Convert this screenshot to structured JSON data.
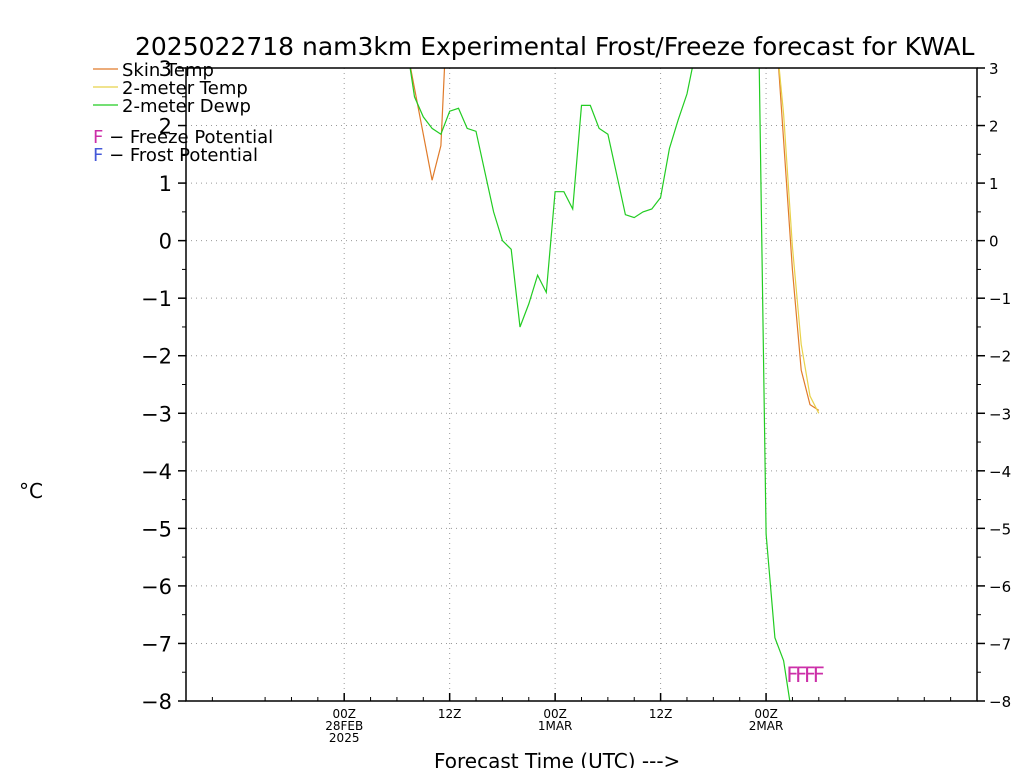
{
  "chart_data": {
    "type": "line",
    "title": "2025022718 nam3km Experimental Frost/Freeze forecast for KWAL",
    "xlabel": "Forecast Time (UTC) --->",
    "ylabel": "°C",
    "xlim": [
      -18,
      72
    ],
    "ylim": [
      -8,
      3
    ],
    "grid": true,
    "legend_placement": "top-left",
    "y_ticks": [
      "−8",
      "−7",
      "−6",
      "−5",
      "−4",
      "−3",
      "−2",
      "−1",
      "0",
      "1",
      "2",
      "3"
    ],
    "x_ticks": [
      {
        "x": 0,
        "lines": [
          "00Z",
          "28FEB",
          "2025"
        ]
      },
      {
        "x": 12,
        "lines": [
          "12Z"
        ]
      },
      {
        "x": 24,
        "lines": [
          "00Z",
          "1MAR"
        ]
      },
      {
        "x": 36,
        "lines": [
          "12Z"
        ]
      },
      {
        "x": 48,
        "lines": [
          "00Z",
          "2MAR"
        ]
      }
    ],
    "series": [
      {
        "name": "Skin Temp",
        "color": "#e07b2a",
        "points": [
          [
            7.3,
            3.2
          ],
          [
            10,
            1.05
          ],
          [
            11,
            1.65
          ],
          [
            11.5,
            3.3
          ],
          [
            49.3,
            3.3
          ],
          [
            51,
            -0.5
          ],
          [
            52,
            -2.25
          ],
          [
            53,
            -2.85
          ],
          [
            54,
            -2.95
          ]
        ]
      },
      {
        "name": "2-meter Temp",
        "color": "#e8d24a",
        "points": [
          [
            49.3,
            3.3
          ],
          [
            50,
            2.2
          ],
          [
            51,
            -0.1
          ],
          [
            52,
            -1.8
          ],
          [
            53,
            -2.7
          ],
          [
            54,
            -3.0
          ]
        ]
      },
      {
        "name": "2-meter Dewp",
        "color": "#22cc22",
        "points": [
          [
            7.3,
            3.2
          ],
          [
            8,
            2.5
          ],
          [
            9,
            2.15
          ],
          [
            10,
            1.95
          ],
          [
            11,
            1.85
          ],
          [
            12,
            2.25
          ],
          [
            13,
            2.3
          ],
          [
            14,
            1.95
          ],
          [
            15,
            1.9
          ],
          [
            16,
            1.2
          ],
          [
            17,
            0.5
          ],
          [
            18,
            0.0
          ],
          [
            19,
            -0.15
          ],
          [
            20,
            -1.5
          ],
          [
            21,
            -1.1
          ],
          [
            22,
            -0.6
          ],
          [
            23,
            -0.9
          ],
          [
            24,
            0.85
          ],
          [
            25,
            0.85
          ],
          [
            26,
            0.55
          ],
          [
            27,
            2.35
          ],
          [
            28,
            2.35
          ],
          [
            29,
            1.95
          ],
          [
            30,
            1.85
          ],
          [
            31,
            1.15
          ],
          [
            32,
            0.45
          ],
          [
            33,
            0.4
          ],
          [
            34,
            0.5
          ],
          [
            35,
            0.55
          ],
          [
            36,
            0.75
          ],
          [
            37,
            1.6
          ],
          [
            38,
            2.1
          ],
          [
            39,
            2.55
          ],
          [
            40,
            3.3
          ],
          [
            47.2,
            3.3
          ],
          [
            48,
            -5.1
          ],
          [
            49,
            -6.9
          ],
          [
            50,
            -7.3
          ],
          [
            50.7,
            -8.0
          ]
        ]
      }
    ],
    "legend_extra": [
      {
        "marker": "F",
        "text": " − Freeze Potential",
        "color": "#cc2fa8"
      },
      {
        "marker": "F",
        "text": " − Frost Potential",
        "color": "#4458d8"
      }
    ],
    "markers": {
      "symbol": "F",
      "color": "#cc2fa8",
      "y": -7.5,
      "x": [
        51,
        52,
        53,
        54
      ]
    }
  }
}
